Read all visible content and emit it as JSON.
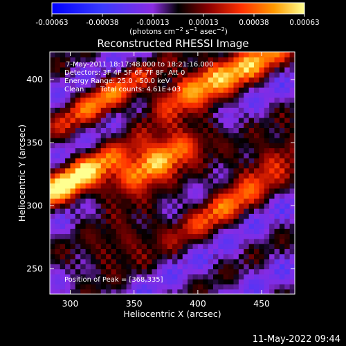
{
  "chart_data": {
    "type": "heatmap",
    "title": "Reconstructed RHESSI Image",
    "xlabel": "Heliocentric X (arcsec)",
    "ylabel": "Heliocentric Y (arcsec)",
    "xlim": [
      284,
      476
    ],
    "ylim": [
      230,
      422
    ],
    "xticks": [
      300,
      350,
      400,
      450
    ],
    "yticks": [
      250,
      300,
      350,
      400
    ],
    "colorbar": {
      "ticks": [
        "-0.00063",
        "-0.00038",
        "-0.00013",
        "0.00013",
        "0.00038",
        "0.00063"
      ],
      "min": -0.00063,
      "max": 0.00063
    },
    "annotations": [
      "7-May-2011 18:17:48.000 to 18:21:16.000",
      "Detectors: 3F 4F 5F 6F 7F 8F, Att 0",
      "Energy Range: 25.0 - 50.0 keV",
      "Clean",
      "Total counts: 4.61E+03"
    ],
    "peak_label": "Position of Peak = [368,335]",
    "peak": [
      368,
      335
    ],
    "timestamp": "11-May-2022 09:44",
    "ridges": [
      {
        "x": 368,
        "y": 335,
        "amp": 1.0
      },
      {
        "x": 300,
        "y": 320,
        "amp": 0.9
      },
      {
        "x": 395,
        "y": 395,
        "amp": 0.7
      },
      {
        "x": 445,
        "y": 415,
        "amp": 0.6
      },
      {
        "x": 325,
        "y": 385,
        "amp": 0.55
      },
      {
        "x": 420,
        "y": 300,
        "amp": 0.5
      },
      {
        "x": 460,
        "y": 340,
        "amp": 0.45
      },
      {
        "x": 340,
        "y": 270,
        "amp": 0.4
      }
    ]
  }
}
